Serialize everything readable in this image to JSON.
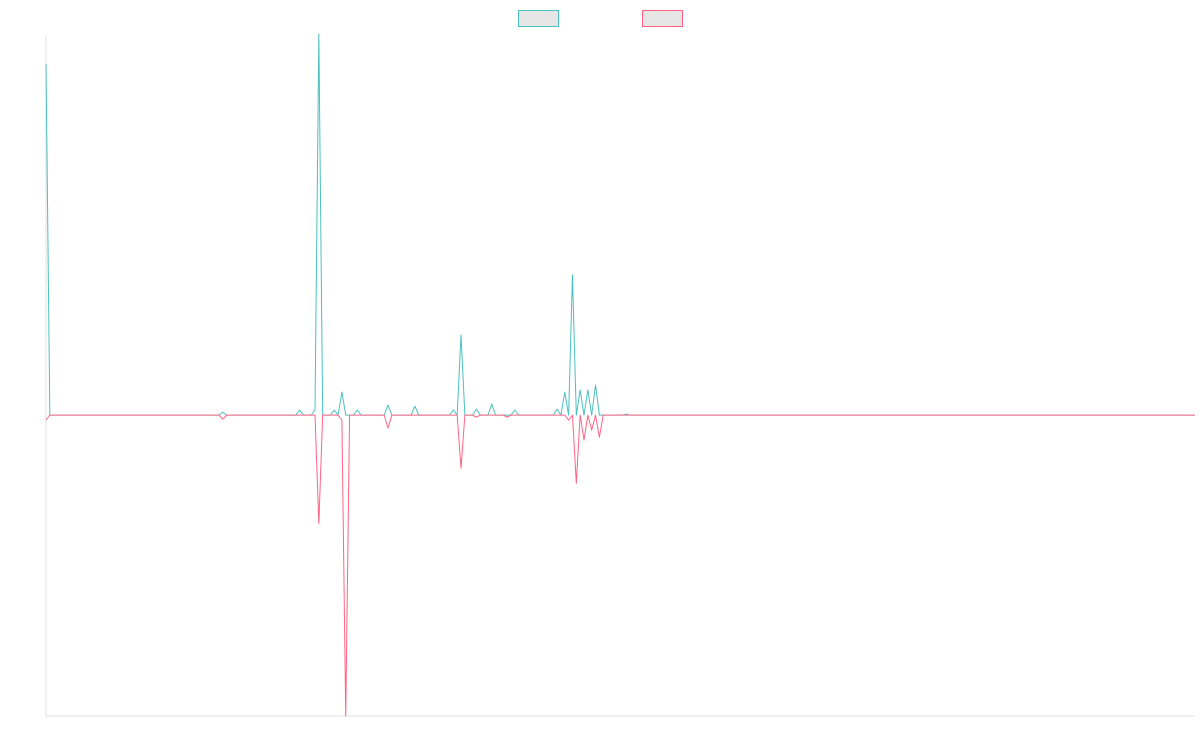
{
  "chart_data": {
    "type": "line",
    "title": "",
    "xlabel": "",
    "ylabel": "",
    "grid": false,
    "legend": {
      "placement": "top-center",
      "entries": [
        "",
        ""
      ]
    },
    "colors": {
      "positive": "#4bc0c0",
      "negative": "#ff6384",
      "legend_fill": "#e6e6e6",
      "axis": "#e0e0e0"
    },
    "x": [
      0,
      1,
      2,
      3,
      4,
      5,
      6,
      7,
      8,
      9,
      10,
      11,
      12,
      13,
      14,
      15,
      16,
      17,
      18,
      19,
      20,
      21,
      22,
      23,
      24,
      25,
      26,
      27,
      28,
      29,
      30,
      31,
      32,
      33,
      34,
      35,
      36,
      37,
      38,
      39,
      40,
      41,
      42,
      43,
      44,
      45,
      46,
      47,
      48,
      49,
      50,
      51,
      52,
      53,
      54,
      55,
      56,
      57,
      58,
      59,
      60,
      61,
      62,
      63,
      64,
      65,
      66,
      67,
      68,
      69,
      70,
      71,
      72,
      73,
      74,
      75,
      76,
      77,
      78,
      79,
      80,
      81,
      82,
      83,
      84,
      85,
      86,
      87,
      88,
      89,
      90,
      91,
      92,
      93,
      94,
      95,
      96,
      97,
      98,
      99,
      100,
      101,
      102,
      103,
      104,
      105,
      106,
      107,
      108,
      109,
      110,
      111,
      112,
      113,
      114,
      115,
      116,
      117,
      118,
      119,
      120,
      121,
      122,
      123,
      124,
      125,
      126,
      127,
      128,
      129,
      130,
      131,
      132,
      133,
      134,
      135,
      136,
      137,
      138,
      139,
      140,
      141,
      142,
      143,
      144,
      145,
      146,
      147,
      148,
      149,
      150,
      151,
      152,
      153,
      154,
      155,
      156,
      157,
      158,
      159,
      160,
      161,
      162,
      163,
      164,
      165,
      166,
      167,
      168,
      169,
      170,
      171,
      172,
      173,
      174,
      175,
      176,
      177,
      178,
      179,
      180,
      181,
      182,
      183,
      184,
      185,
      186,
      187,
      188,
      189,
      190,
      191,
      192,
      193,
      194,
      195,
      196,
      197,
      198,
      199,
      200,
      201,
      202,
      203,
      204,
      205,
      206,
      207,
      208,
      209,
      210,
      211,
      212,
      213,
      214,
      215,
      216,
      217,
      218,
      219,
      220,
      221,
      222,
      223,
      224,
      225,
      226,
      227,
      228,
      229,
      230,
      231,
      232,
      233,
      234,
      235,
      236,
      237,
      238,
      239,
      240,
      241,
      242,
      243,
      244,
      245,
      246,
      247,
      248,
      249,
      250,
      251,
      252,
      253,
      254,
      255,
      256,
      257,
      258,
      259,
      260,
      261,
      262,
      263,
      264,
      265,
      266,
      267,
      268,
      269,
      270,
      271,
      272,
      273,
      274,
      275,
      276,
      277,
      278,
      279,
      280,
      281,
      282,
      283,
      284,
      285,
      286,
      287,
      288,
      289,
      290,
      291,
      292,
      293,
      294,
      295,
      296,
      297,
      298,
      299
    ],
    "xlim": [
      0,
      299
    ],
    "ylim": [
      -300,
      378
    ],
    "series": [
      {
        "color": "#4bc0c0",
        "points": [
          [
            0,
            350
          ],
          [
            1,
            0
          ],
          [
            45,
            0
          ],
          [
            46,
            3
          ],
          [
            47,
            0
          ],
          [
            65,
            0
          ],
          [
            66,
            5
          ],
          [
            67,
            0
          ],
          [
            69,
            0
          ],
          [
            70,
            5
          ],
          [
            71,
            380
          ],
          [
            72,
            0
          ],
          [
            74,
            0
          ],
          [
            75,
            5
          ],
          [
            76,
            0
          ],
          [
            77,
            23
          ],
          [
            78,
            0
          ],
          [
            80,
            0
          ],
          [
            81,
            5
          ],
          [
            82,
            0
          ],
          [
            83,
            0
          ],
          [
            84,
            0
          ],
          [
            88,
            0
          ],
          [
            89,
            10
          ],
          [
            90,
            0
          ],
          [
            95,
            0
          ],
          [
            96,
            9
          ],
          [
            97,
            0
          ],
          [
            105,
            0
          ],
          [
            106,
            5
          ],
          [
            107,
            0
          ],
          [
            108,
            80
          ],
          [
            109,
            0
          ],
          [
            111,
            0
          ],
          [
            112,
            6
          ],
          [
            113,
            0
          ],
          [
            115,
            0
          ],
          [
            116,
            11
          ],
          [
            117,
            0
          ],
          [
            118,
            0
          ],
          [
            119,
            0
          ],
          [
            120,
            0
          ],
          [
            121,
            0
          ],
          [
            122,
            5
          ],
          [
            123,
            0
          ],
          [
            124,
            0
          ],
          [
            125,
            0
          ],
          [
            126,
            0
          ],
          [
            127,
            0
          ],
          [
            128,
            0
          ],
          [
            129,
            0
          ],
          [
            130,
            0
          ],
          [
            131,
            0
          ],
          [
            132,
            0
          ],
          [
            133,
            6
          ],
          [
            134,
            0
          ],
          [
            135,
            23
          ],
          [
            136,
            0
          ],
          [
            137,
            140
          ],
          [
            138,
            0
          ],
          [
            139,
            25
          ],
          [
            140,
            0
          ],
          [
            141,
            25
          ],
          [
            142,
            0
          ],
          [
            143,
            30
          ],
          [
            144,
            0
          ],
          [
            150,
            0
          ],
          [
            151,
            1
          ],
          [
            152,
            0
          ],
          [
            299,
            0
          ]
        ]
      },
      {
        "color": "#ff6384",
        "points": [
          [
            0,
            -5
          ],
          [
            1,
            0
          ],
          [
            45,
            0
          ],
          [
            46,
            -4
          ],
          [
            47,
            0
          ],
          [
            70,
            0
          ],
          [
            71,
            -108
          ],
          [
            72,
            0
          ],
          [
            76,
            0
          ],
          [
            77,
            -5
          ],
          [
            78,
            -300
          ],
          [
            79,
            0
          ],
          [
            88,
            0
          ],
          [
            89,
            -13
          ],
          [
            90,
            0
          ],
          [
            107,
            0
          ],
          [
            108,
            -53
          ],
          [
            109,
            0
          ],
          [
            111,
            0
          ],
          [
            112,
            -2
          ],
          [
            113,
            0
          ],
          [
            119,
            0
          ],
          [
            120,
            -2
          ],
          [
            121,
            0
          ],
          [
            135,
            0
          ],
          [
            136,
            -5
          ],
          [
            137,
            0
          ],
          [
            138,
            -68
          ],
          [
            139,
            0
          ],
          [
            140,
            -25
          ],
          [
            141,
            0
          ],
          [
            142,
            -15
          ],
          [
            143,
            0
          ],
          [
            144,
            -22
          ],
          [
            145,
            0
          ],
          [
            299,
            0
          ]
        ]
      }
    ]
  }
}
